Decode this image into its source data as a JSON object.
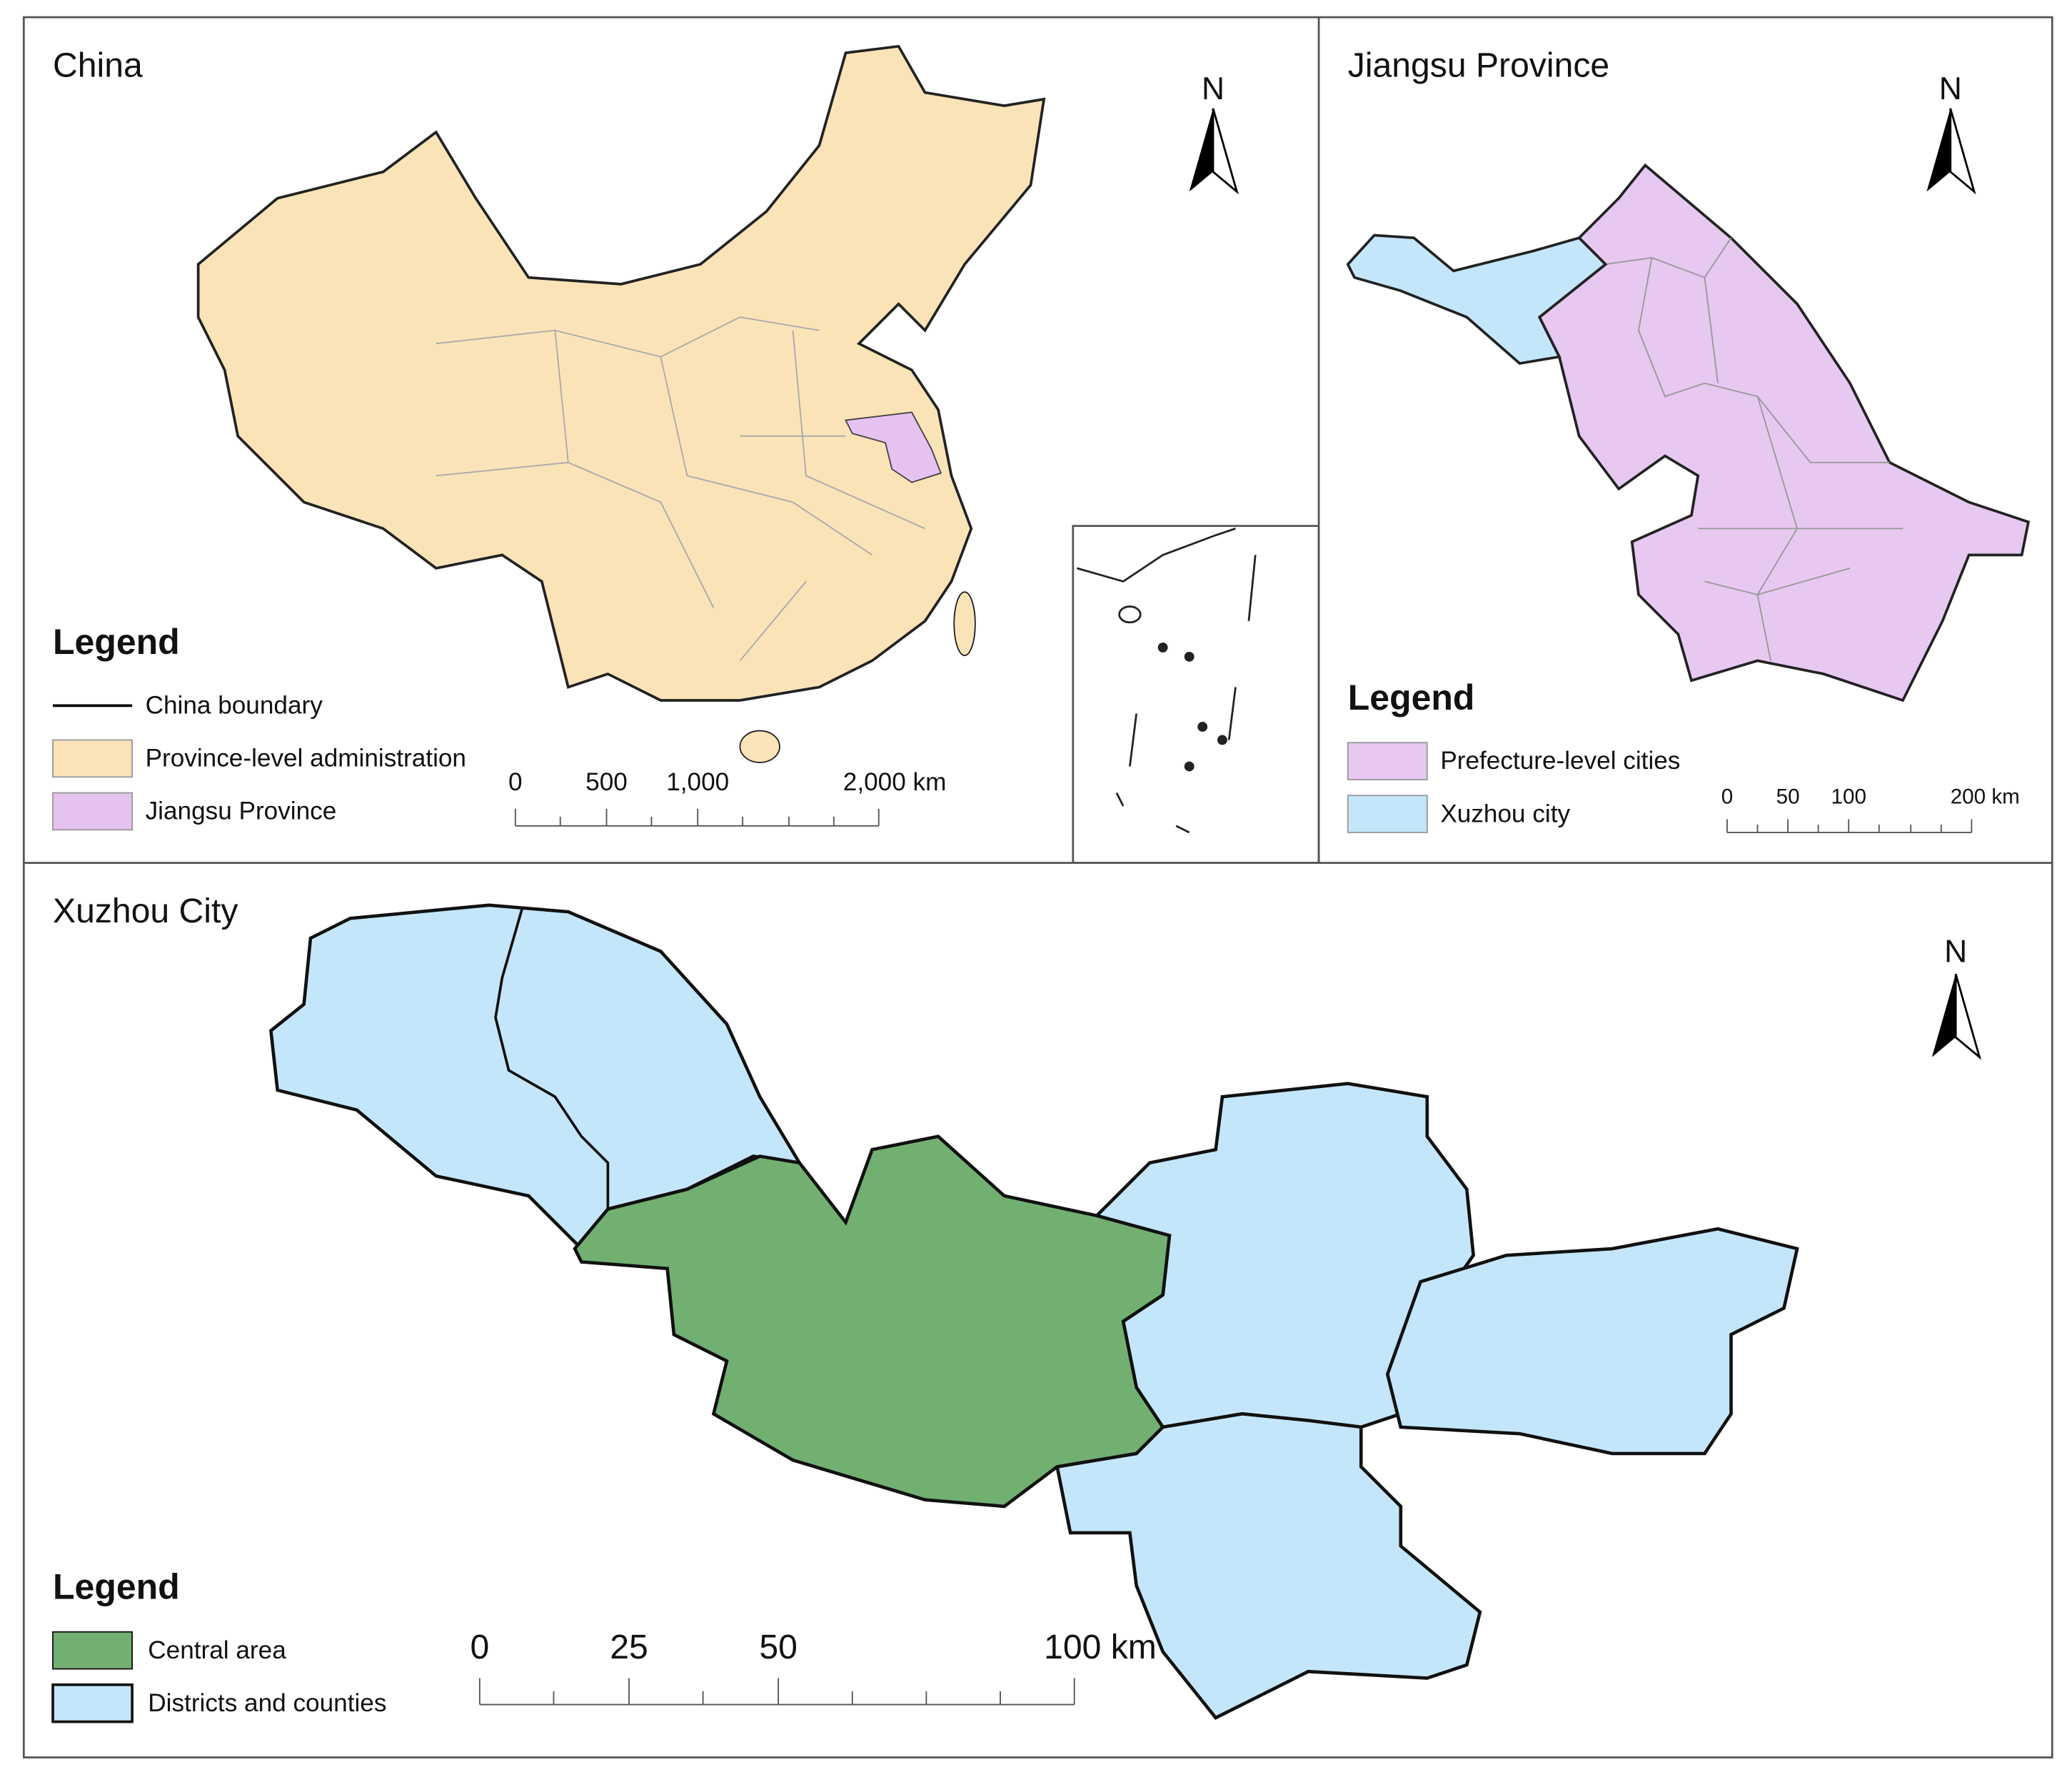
{
  "panels": [
    {
      "title": "China",
      "north": "N",
      "legend": {
        "title": "Legend",
        "items": [
          "China boundary",
          "Province-level administration",
          "Jiangsu Province"
        ]
      },
      "scale_bar": [
        "0",
        "500",
        "1,000",
        "2,000 km"
      ]
    },
    {
      "title": "Jiangsu Province",
      "north": "N",
      "legend": {
        "title": "Legend",
        "items": [
          "Prefecture-level cities",
          "Xuzhou city"
        ]
      },
      "scale_bar": [
        "0",
        "50",
        "100",
        "200 km"
      ]
    },
    {
      "title": "Xuzhou City",
      "north": "N",
      "legend": {
        "title": "Legend",
        "items": [
          "Central area",
          "Districts and counties"
        ]
      },
      "scale_bar": [
        "0",
        "25",
        "50",
        "100 km"
      ]
    }
  ]
}
